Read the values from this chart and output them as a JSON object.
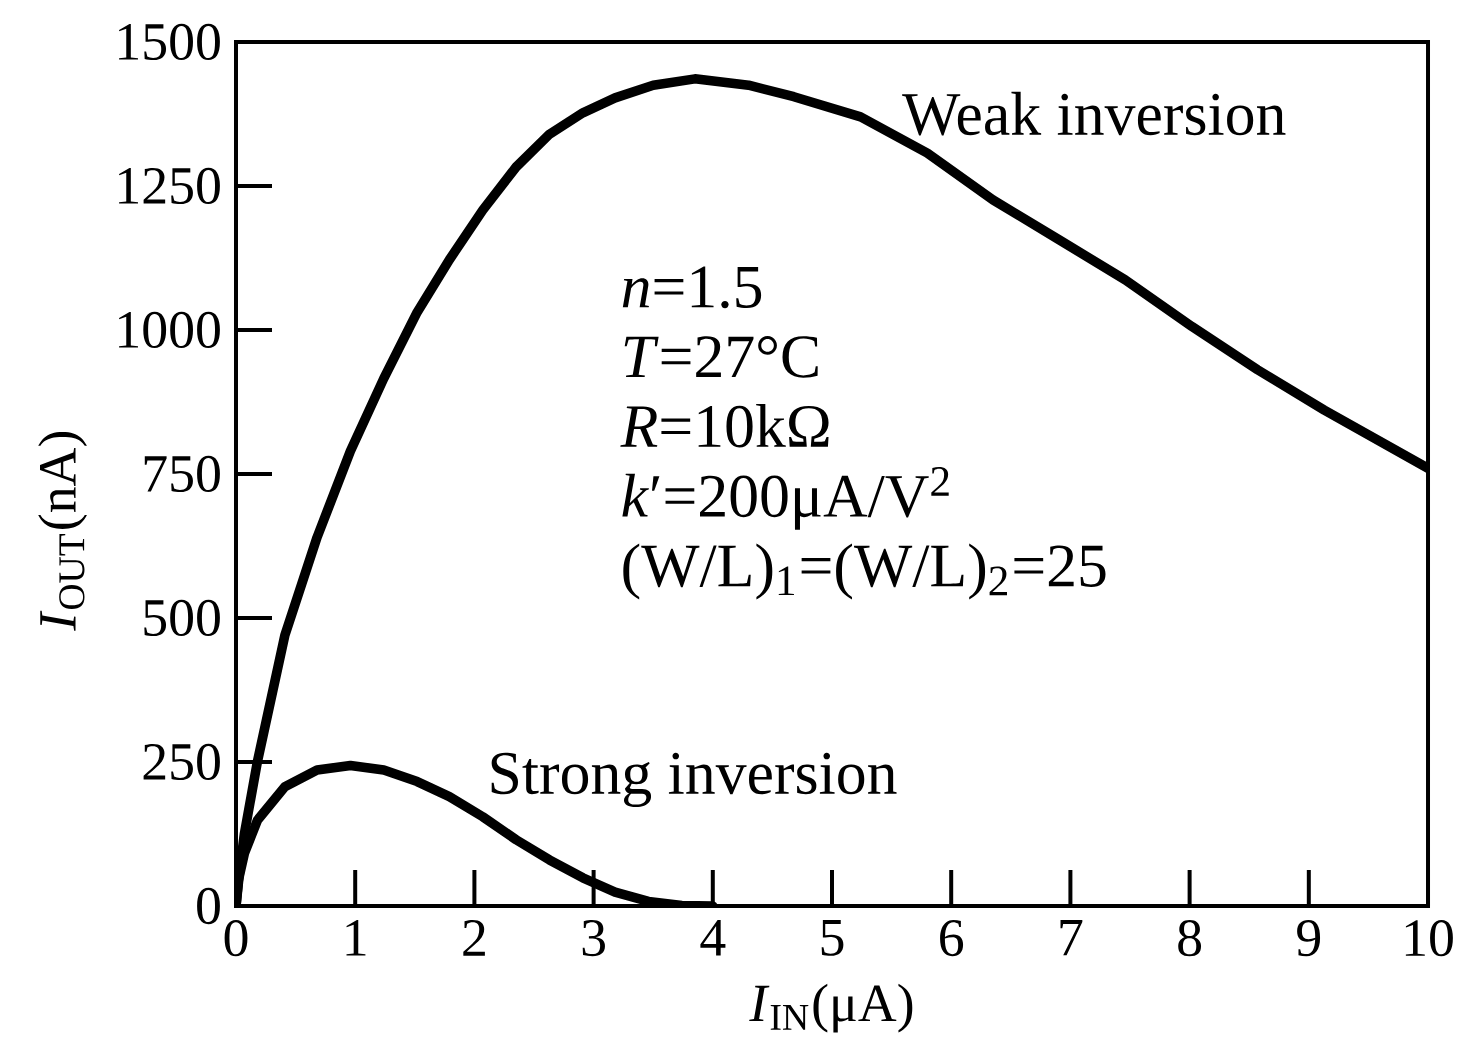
{
  "chart_data": {
    "type": "line",
    "xlabel": "*I*$_{IN}$(μA)",
    "ylabel": "*I*$_{OUT}$(nA)",
    "xlim": [
      0,
      10
    ],
    "ylim": [
      0,
      1500
    ],
    "xticks": [
      0,
      1,
      2,
      3,
      4,
      5,
      6,
      7,
      8,
      9,
      10
    ],
    "yticks": [
      0,
      250,
      500,
      750,
      1000,
      1250,
      1500
    ],
    "series": [
      {
        "name": "Weak inversion",
        "color": "#000000",
        "x": [
          0,
          0.03,
          0.07,
          0.18,
          0.41,
          0.68,
          0.96,
          1.24,
          1.52,
          1.79,
          2.07,
          2.35,
          2.63,
          2.91,
          3.18,
          3.5,
          3.85,
          4.3,
          4.68,
          5.24,
          5.8,
          6.35,
          6.91,
          7.46,
          8.02,
          8.57,
          9.13,
          10
        ],
        "values": [
          0,
          60,
          125,
          251,
          470,
          640,
          790,
          916,
          1031,
          1122,
          1208,
          1283,
          1340,
          1377,
          1403,
          1425,
          1436,
          1425,
          1405,
          1370,
          1307,
          1226,
          1156,
          1087,
          1006,
          931,
          861,
          760
        ]
      },
      {
        "name": "Strong inversion",
        "color": "#000000",
        "x": [
          0,
          0.02,
          0.07,
          0.18,
          0.41,
          0.68,
          0.96,
          1.24,
          1.52,
          1.79,
          2.07,
          2.35,
          2.63,
          2.91,
          3.18,
          3.46,
          3.74,
          4
        ],
        "values": [
          0,
          45,
          91,
          149,
          207,
          236,
          244,
          236,
          216,
          190,
          155,
          115,
          80,
          49,
          24,
          8,
          1,
          0
        ]
      }
    ],
    "annotations": [
      "*n*=1.5",
      "*T*=27°C",
      "*R*=10kΩ",
      "*k*′=200μA/V$^{2}$",
      "(W/L)$_{1}$=(W/L)$_{2}$=25"
    ]
  }
}
